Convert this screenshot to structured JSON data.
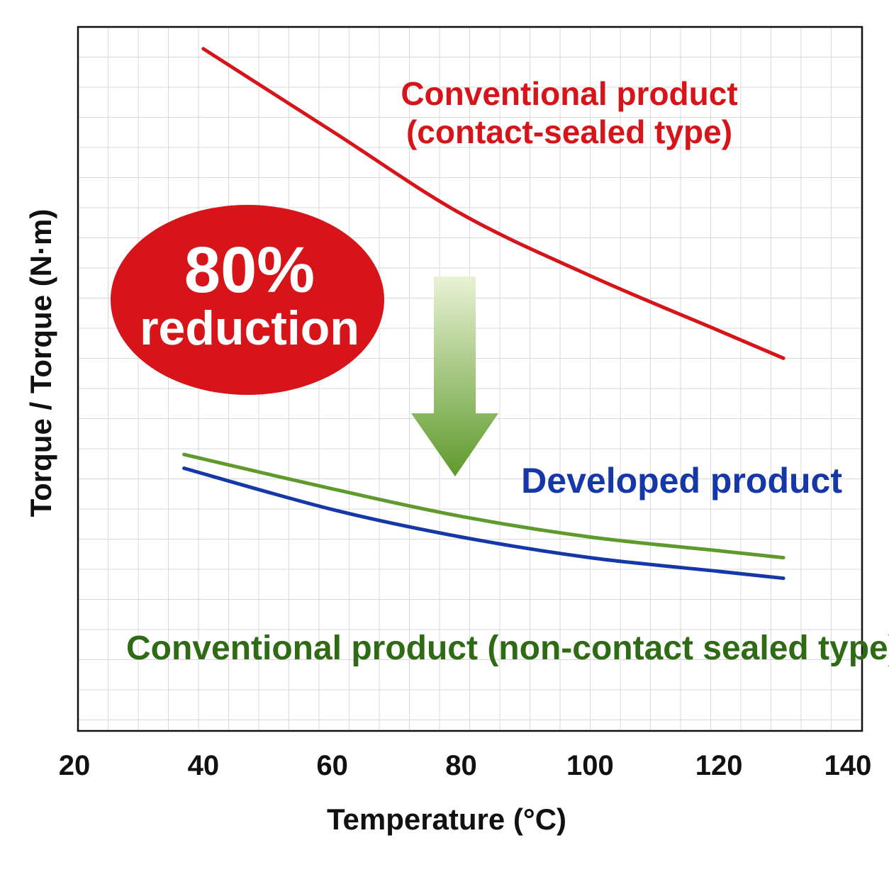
{
  "chart_data": {
    "type": "line",
    "xlabel": "Temperature (°C)",
    "ylabel": "Torque / Torque (N·m)",
    "xlim": [
      20,
      140
    ],
    "ylim": [
      0,
      10
    ],
    "x_ticks": [
      "20",
      "40",
      "60",
      "80",
      "100",
      "120",
      "140"
    ],
    "y_ticks_shown": false,
    "grid": true,
    "legend": "none (series labelled directly on the plot)",
    "series": [
      {
        "name": "Conventional product (contact-sealed type)",
        "color": "#d7141a",
        "x": [
          40,
          60,
          80,
          100,
          120,
          130
        ],
        "y": [
          9.6,
          8.4,
          7.2,
          6.3,
          5.5,
          5.1
        ]
      },
      {
        "name": "Conventional product (non-contact sealed type)",
        "color": "#5f9a2c",
        "x": [
          37,
          60,
          80,
          100,
          120,
          130
        ],
        "y": [
          3.7,
          3.2,
          2.8,
          2.5,
          2.3,
          2.2
        ]
      },
      {
        "name": "Developed product",
        "color": "#1537a8",
        "x": [
          37,
          60,
          80,
          100,
          120,
          130
        ],
        "y": [
          3.5,
          2.9,
          2.5,
          2.2,
          2.0,
          1.9
        ]
      }
    ],
    "annotations": {
      "contact_label_line1": "Conventional product",
      "contact_label_line2": "(contact-sealed type)",
      "developed_label": "Developed product",
      "noncontact_label": "Conventional product (non-contact sealed type)",
      "badge_line1": "80%",
      "badge_line2": "reduction"
    },
    "colors": {
      "contact": "#d7141a",
      "noncontact_line": "#5f9a2c",
      "noncontact_text": "#2e6b14",
      "developed": "#1537a8",
      "badge": "#d7141a",
      "arrow_top": "#e8f2d4",
      "arrow_bottom": "#5f9a2c"
    }
  }
}
